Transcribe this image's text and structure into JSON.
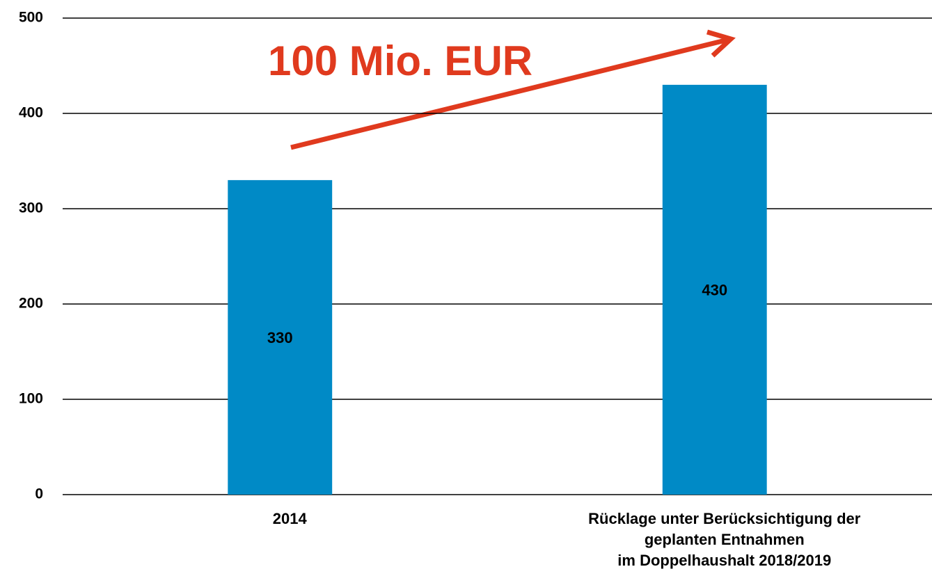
{
  "chart_data": {
    "type": "bar",
    "categories": [
      "2014",
      "Rücklage unter Berücksichtigung der\ngeplanten Entnahmen\nim Doppelhaushalt 2018/2019"
    ],
    "values": [
      330,
      430
    ],
    "color": "#008ac6",
    "ylim": [
      0,
      500
    ],
    "yticks": [
      0,
      100,
      200,
      300,
      400,
      500
    ],
    "grid": true,
    "annotation": "100 Mio. EUR"
  }
}
